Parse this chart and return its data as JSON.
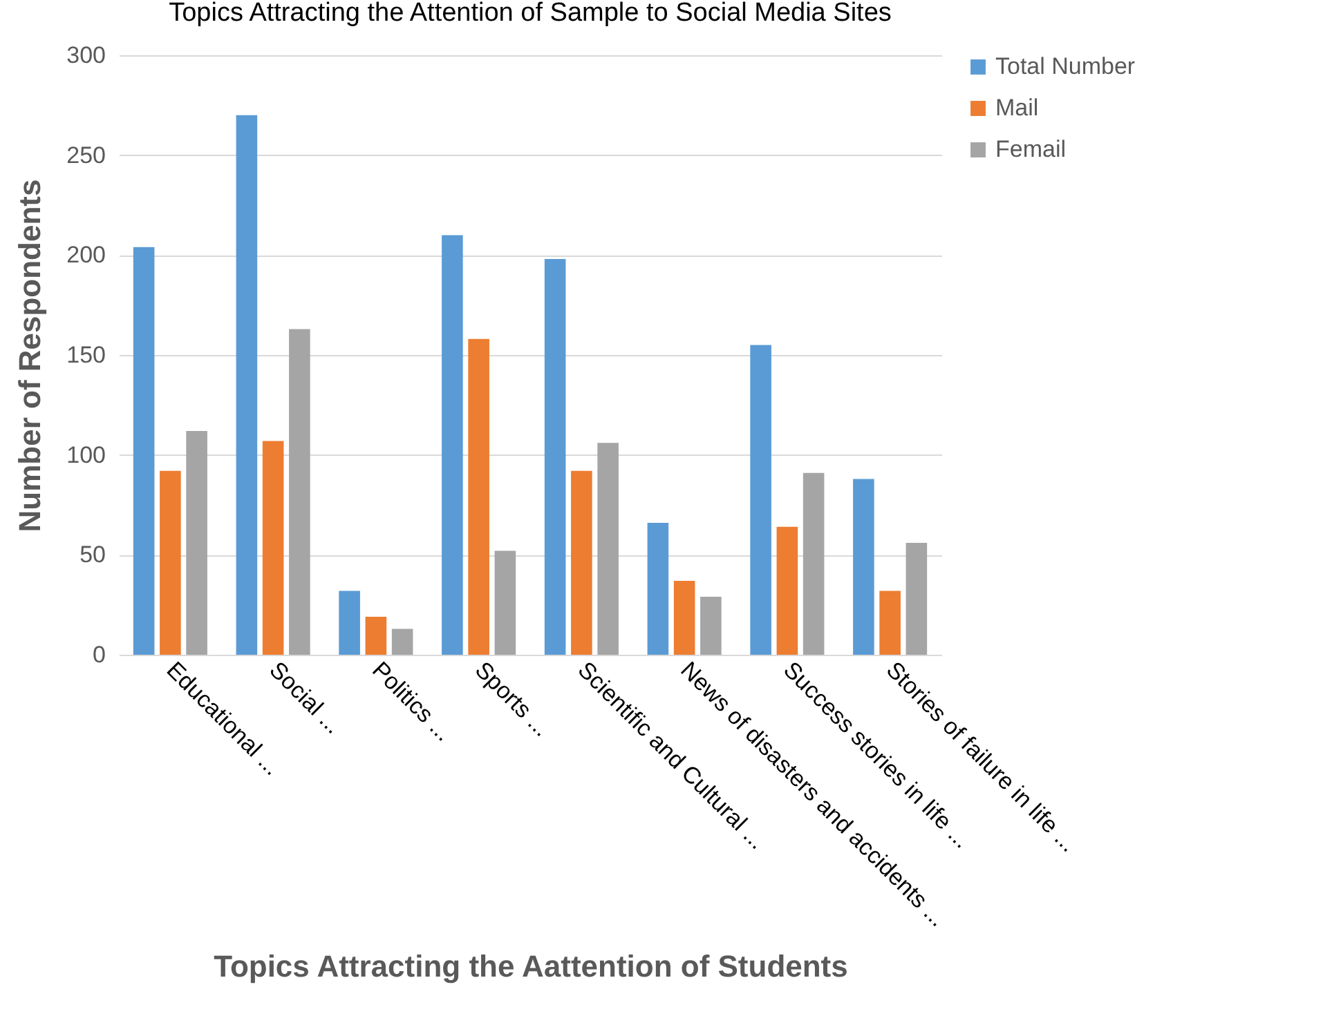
{
  "chart_data": {
    "type": "bar",
    "title": "Topics Attracting the Attention of Sample to Social Media Sites",
    "xlabel": "Topics Attracting the Aattention of Students",
    "ylabel": "Number of Respondents",
    "categories": [
      "Educational ...",
      "Social ...",
      "Politics ...",
      "Sports ...",
      "Scientific and Cultural ...",
      "News of disasters and accidents ...",
      "Success stories in life ...",
      "Stories of failure in life ..."
    ],
    "series": [
      {
        "name": "Total Number",
        "color": "#5b9bd5",
        "values": [
          204,
          270,
          32,
          210,
          198,
          66,
          155,
          88
        ]
      },
      {
        "name": "Mail",
        "color": "#ed7d31",
        "values": [
          92,
          107,
          19,
          158,
          92,
          37,
          64,
          32
        ]
      },
      {
        "name": "Femail",
        "color": "#a5a5a5",
        "values": [
          112,
          163,
          13,
          52,
          106,
          29,
          91,
          56
        ]
      }
    ],
    "ylim": [
      0,
      300
    ],
    "yticks": [
      0,
      50,
      100,
      150,
      200,
      250,
      300
    ],
    "grid": "y",
    "legend": "right"
  }
}
